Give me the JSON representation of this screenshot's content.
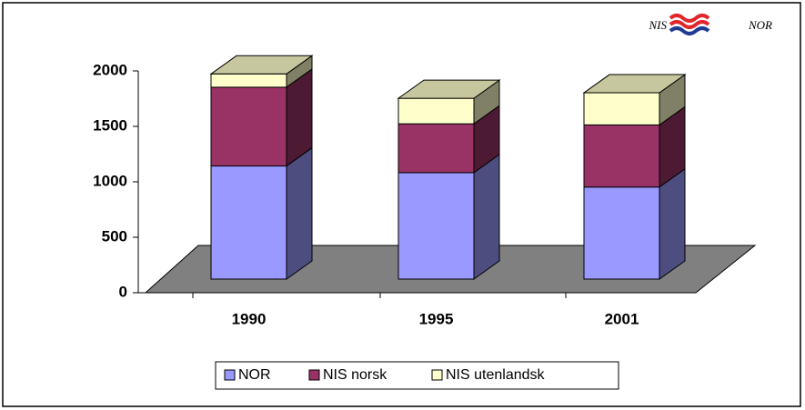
{
  "logo": {
    "left": "NIS",
    "right": "NOR"
  },
  "chart_data": {
    "type": "bar3d_stacked",
    "categories": [
      "1990",
      "1995",
      "2001"
    ],
    "series": [
      {
        "name": "NOR",
        "color": "#9999ff",
        "values": [
          1020,
          960,
          830
        ]
      },
      {
        "name": "NIS norsk",
        "color": "#993366",
        "values": [
          710,
          440,
          560
        ]
      },
      {
        "name": "NIS utenlandsk",
        "color": "#ffffcc",
        "values": [
          120,
          230,
          290
        ]
      }
    ],
    "ylim": [
      0,
      2000
    ],
    "yticks": [
      0,
      500,
      1000,
      1500,
      2000
    ],
    "floor_color": "#808080"
  }
}
